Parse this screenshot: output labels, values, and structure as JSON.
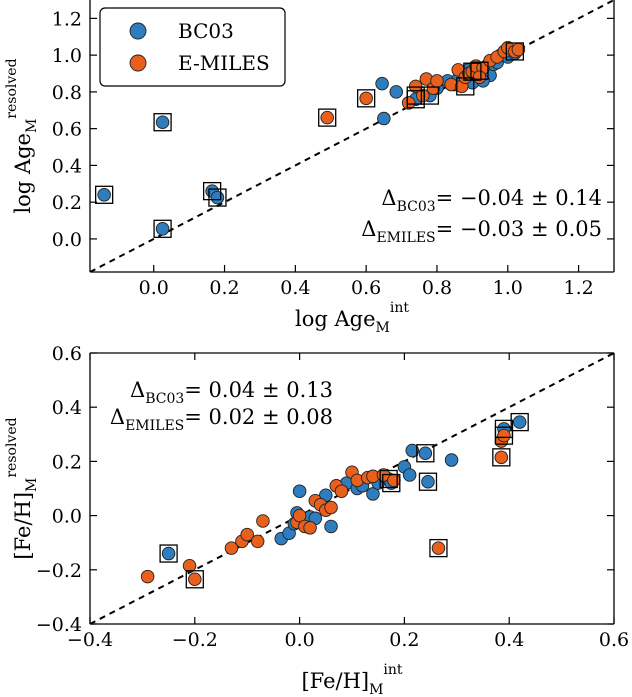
{
  "chart_data": [
    {
      "type": "scatter",
      "xlabel": {
        "main": "log Age",
        "sub": "M",
        "sup": "int"
      },
      "ylabel": {
        "main": "log Age",
        "sub": "M",
        "sup": "resolved"
      },
      "xlim": [
        -0.18,
        1.3
      ],
      "ylim": [
        -0.18,
        1.3
      ],
      "x_ticks": [
        0.0,
        0.2,
        0.4,
        0.6,
        0.8,
        1.0,
        1.2
      ],
      "x_tick_labels": [
        "0.0",
        "0.2",
        "0.4",
        "0.6",
        "0.8",
        "1.0",
        "1.2"
      ],
      "y_ticks": [
        0.0,
        0.2,
        0.4,
        0.6,
        0.8,
        1.0,
        1.2
      ],
      "y_tick_labels": [
        "0.0",
        "0.2",
        "0.4",
        "0.6",
        "0.8",
        "1.0",
        "1.2"
      ],
      "one_to_one_line": true,
      "legend": {
        "placement": "top-left",
        "entries": [
          {
            "name": "BC03",
            "color": "#2e7ebf"
          },
          {
            "name": "E-MILES",
            "color": "#e8601c"
          }
        ]
      },
      "annotations": [
        {
          "symbol": "Δ",
          "sub": "BC03",
          "text": "= −0.04 ± 0.14"
        },
        {
          "symbol": "Δ",
          "sub": "EMILES",
          "text": "= −0.03 ± 0.05"
        }
      ],
      "series": [
        {
          "name": "BC03",
          "color": "#2e7ebf",
          "points": [
            [
              -0.14,
              0.24
            ],
            [
              0.025,
              0.635
            ],
            [
              0.025,
              0.055
            ],
            [
              0.165,
              0.26
            ],
            [
              0.18,
              0.225
            ],
            [
              0.65,
              0.655
            ],
            [
              0.645,
              0.845
            ],
            [
              0.685,
              0.8
            ],
            [
              0.74,
              0.76
            ],
            [
              0.78,
              0.78
            ],
            [
              0.8,
              0.82
            ],
            [
              0.83,
              0.86
            ],
            [
              0.85,
              0.84
            ],
            [
              0.86,
              0.87
            ],
            [
              0.88,
              0.88
            ],
            [
              0.9,
              0.9
            ],
            [
              0.91,
              0.93
            ],
            [
              0.92,
              0.915
            ],
            [
              0.94,
              0.94
            ],
            [
              0.95,
              0.89
            ],
            [
              0.96,
              0.95
            ],
            [
              0.97,
              0.96
            ],
            [
              0.98,
              1.0
            ],
            [
              1.0,
              0.99
            ],
            [
              1.02,
              1.01
            ],
            [
              0.9,
              0.85
            ],
            [
              0.93,
              0.86
            ],
            [
              0.89,
              0.92
            ]
          ],
          "boxed": [
            [
              -0.14,
              0.24
            ],
            [
              0.025,
              0.635
            ],
            [
              0.025,
              0.055
            ],
            [
              0.165,
              0.26
            ],
            [
              0.18,
              0.225
            ],
            [
              0.74,
              0.76
            ],
            [
              0.78,
              0.78
            ],
            [
              0.92,
              0.915
            ]
          ]
        },
        {
          "name": "E-MILES",
          "color": "#e8601c",
          "points": [
            [
              0.49,
              0.66
            ],
            [
              0.6,
              0.765
            ],
            [
              0.72,
              0.74
            ],
            [
              0.74,
              0.83
            ],
            [
              0.76,
              0.78
            ],
            [
              0.77,
              0.87
            ],
            [
              0.79,
              0.82
            ],
            [
              0.8,
              0.86
            ],
            [
              0.84,
              0.84
            ],
            [
              0.86,
              0.92
            ],
            [
              0.87,
              0.83
            ],
            [
              0.88,
              0.88
            ],
            [
              0.89,
              0.9
            ],
            [
              0.9,
              0.91
            ],
            [
              0.91,
              0.94
            ],
            [
              0.93,
              0.93
            ],
            [
              0.95,
              0.97
            ],
            [
              0.97,
              0.99
            ],
            [
              0.99,
              1.02
            ],
            [
              1.0,
              1.04
            ],
            [
              1.02,
              1.02
            ],
            [
              1.03,
              1.03
            ],
            [
              0.92,
              0.88
            ]
          ],
          "boxed": [
            [
              0.49,
              0.66
            ],
            [
              0.6,
              0.765
            ],
            [
              0.74,
              0.78
            ],
            [
              0.88,
              0.83
            ],
            [
              0.9,
              0.91
            ],
            [
              1.02,
              1.02
            ]
          ]
        }
      ]
    },
    {
      "type": "scatter",
      "xlabel": {
        "main": "[Fe/H]",
        "sub": "M",
        "sup": "int"
      },
      "ylabel": {
        "main": "[Fe/H]",
        "sub": "M",
        "sup": "resolved"
      },
      "xlim": [
        -0.4,
        0.6
      ],
      "ylim": [
        -0.4,
        0.6
      ],
      "x_ticks": [
        -0.4,
        -0.2,
        0.0,
        0.2,
        0.4,
        0.6
      ],
      "x_tick_labels": [
        "−0.4",
        "−0.2",
        "0.0",
        "0.2",
        "0.4",
        "0.6"
      ],
      "y_ticks": [
        -0.4,
        -0.2,
        0.0,
        0.2,
        0.4,
        0.6
      ],
      "y_tick_labels": [
        "−0.4",
        "−0.2",
        "0.0",
        "0.2",
        "0.4",
        "0.6"
      ],
      "one_to_one_line": true,
      "annotations": [
        {
          "symbol": "Δ",
          "sub": "BC03",
          "text": "= 0.04 ± 0.13"
        },
        {
          "symbol": "Δ",
          "sub": "EMILES",
          "text": "= 0.02 ± 0.08"
        }
      ],
      "series": [
        {
          "name": "BC03",
          "color": "#2e7ebf",
          "points": [
            [
              -0.25,
              -0.14
            ],
            [
              -0.035,
              -0.085
            ],
            [
              -0.02,
              -0.065
            ],
            [
              -0.01,
              -0.03
            ],
            [
              -0.005,
              0.01
            ],
            [
              0.0,
              0.09
            ],
            [
              0.02,
              -0.005
            ],
            [
              0.03,
              -0.01
            ],
            [
              0.05,
              0.075
            ],
            [
              0.06,
              -0.04
            ],
            [
              0.09,
              0.12
            ],
            [
              0.11,
              0.1
            ],
            [
              0.12,
              0.11
            ],
            [
              0.14,
              0.08
            ],
            [
              0.15,
              0.12
            ],
            [
              0.165,
              0.14
            ],
            [
              0.17,
              0.135
            ],
            [
              0.175,
              0.12
            ],
            [
              0.2,
              0.18
            ],
            [
              0.21,
              0.15
            ],
            [
              0.215,
              0.24
            ],
            [
              0.24,
              0.23
            ],
            [
              0.245,
              0.125
            ],
            [
              0.29,
              0.205
            ],
            [
              0.39,
              0.32
            ],
            [
              0.42,
              0.345
            ]
          ],
          "boxed": [
            [
              -0.25,
              -0.14
            ],
            [
              0.17,
              0.135
            ],
            [
              0.175,
              0.12
            ],
            [
              0.24,
              0.23
            ],
            [
              0.245,
              0.125
            ],
            [
              0.39,
              0.32
            ],
            [
              0.42,
              0.345
            ]
          ]
        },
        {
          "name": "E-MILES",
          "color": "#e8601c",
          "points": [
            [
              -0.29,
              -0.225
            ],
            [
              -0.21,
              -0.185
            ],
            [
              -0.2,
              -0.235
            ],
            [
              -0.13,
              -0.12
            ],
            [
              -0.11,
              -0.095
            ],
            [
              -0.1,
              -0.07
            ],
            [
              -0.08,
              -0.095
            ],
            [
              -0.07,
              -0.02
            ],
            [
              -0.005,
              -0.025
            ],
            [
              0.0,
              0.0
            ],
            [
              0.01,
              -0.04
            ],
            [
              0.02,
              -0.045
            ],
            [
              0.03,
              0.055
            ],
            [
              0.04,
              0.04
            ],
            [
              0.05,
              0.02
            ],
            [
              0.06,
              0.03
            ],
            [
              0.07,
              0.11
            ],
            [
              0.08,
              0.09
            ],
            [
              0.1,
              0.16
            ],
            [
              0.11,
              0.13
            ],
            [
              0.13,
              0.14
            ],
            [
              0.14,
              0.145
            ],
            [
              0.16,
              0.15
            ],
            [
              0.18,
              0.13
            ],
            [
              0.265,
              -0.12
            ],
            [
              0.385,
              0.275
            ],
            [
              0.385,
              0.215
            ],
            [
              0.39,
              0.295
            ]
          ],
          "boxed": [
            [
              -0.2,
              -0.235
            ],
            [
              0.265,
              -0.12
            ],
            [
              0.385,
              0.215
            ],
            [
              0.39,
              0.295
            ]
          ]
        }
      ]
    }
  ]
}
